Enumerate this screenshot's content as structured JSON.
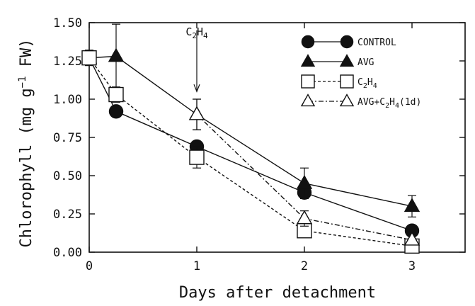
{
  "chart_data": {
    "type": "line",
    "xlabel": "Days after detachment",
    "ylabel": "Chlorophyll (mg g",
    "ylabel_sup": "−1",
    "ylabel_suffix": " FW)",
    "xlim": [
      0,
      3.5
    ],
    "ylim": [
      0,
      1.5
    ],
    "x_ticks": [
      0,
      1,
      2,
      3
    ],
    "y_ticks": [
      0.0,
      0.25,
      0.5,
      0.75,
      1.0,
      1.25,
      1.5
    ],
    "y_tick_labels": [
      "0.00",
      "0.25",
      "0.50",
      "0.75",
      "1.00",
      "1.25",
      "1.50"
    ],
    "grid": false,
    "legend_position": "top-right",
    "annotation": {
      "label_prefix": "C",
      "label_sub1": "2",
      "label_mid": "H",
      "label_sub2": "4",
      "x": 1,
      "arrow_top": 1.45,
      "arrow_bottom": 1.05
    },
    "series": [
      {
        "name": "CONTROL",
        "marker": "circle",
        "filled": true,
        "dash": "solid",
        "x": [
          0,
          0.25,
          1,
          2,
          3
        ],
        "values": [
          1.27,
          0.92,
          0.69,
          0.39,
          0.14
        ],
        "err": [
          0.05,
          0,
          0,
          0,
          0
        ]
      },
      {
        "name": "AVG",
        "marker": "triangle",
        "filled": true,
        "dash": "solid",
        "x": [
          0,
          0.25,
          1,
          2,
          3
        ],
        "values": [
          1.27,
          1.28,
          0.9,
          0.45,
          0.3
        ],
        "err": [
          0.05,
          0.21,
          0.1,
          0.1,
          0.07
        ]
      },
      {
        "name": "C2H4",
        "name_parts": [
          "C",
          "2",
          "H",
          "4",
          ""
        ],
        "marker": "square",
        "filled": false,
        "dash": "dashed",
        "x": [
          0,
          0.25,
          1,
          2,
          3
        ],
        "values": [
          1.27,
          1.03,
          0.62,
          0.14,
          0.04
        ],
        "err": [
          0.05,
          0.05,
          0.07,
          0.03,
          0.02
        ]
      },
      {
        "name": "AVG+C2H4(1d)",
        "name_parts": [
          "AVG+C",
          "2",
          "H",
          "4",
          "(1d)"
        ],
        "marker": "triangle",
        "filled": false,
        "dash": "dashdot",
        "x": [
          1,
          2,
          3
        ],
        "values": [
          0.9,
          0.22,
          0.08
        ],
        "err": [
          0.1,
          0.05,
          0.03
        ]
      }
    ]
  }
}
